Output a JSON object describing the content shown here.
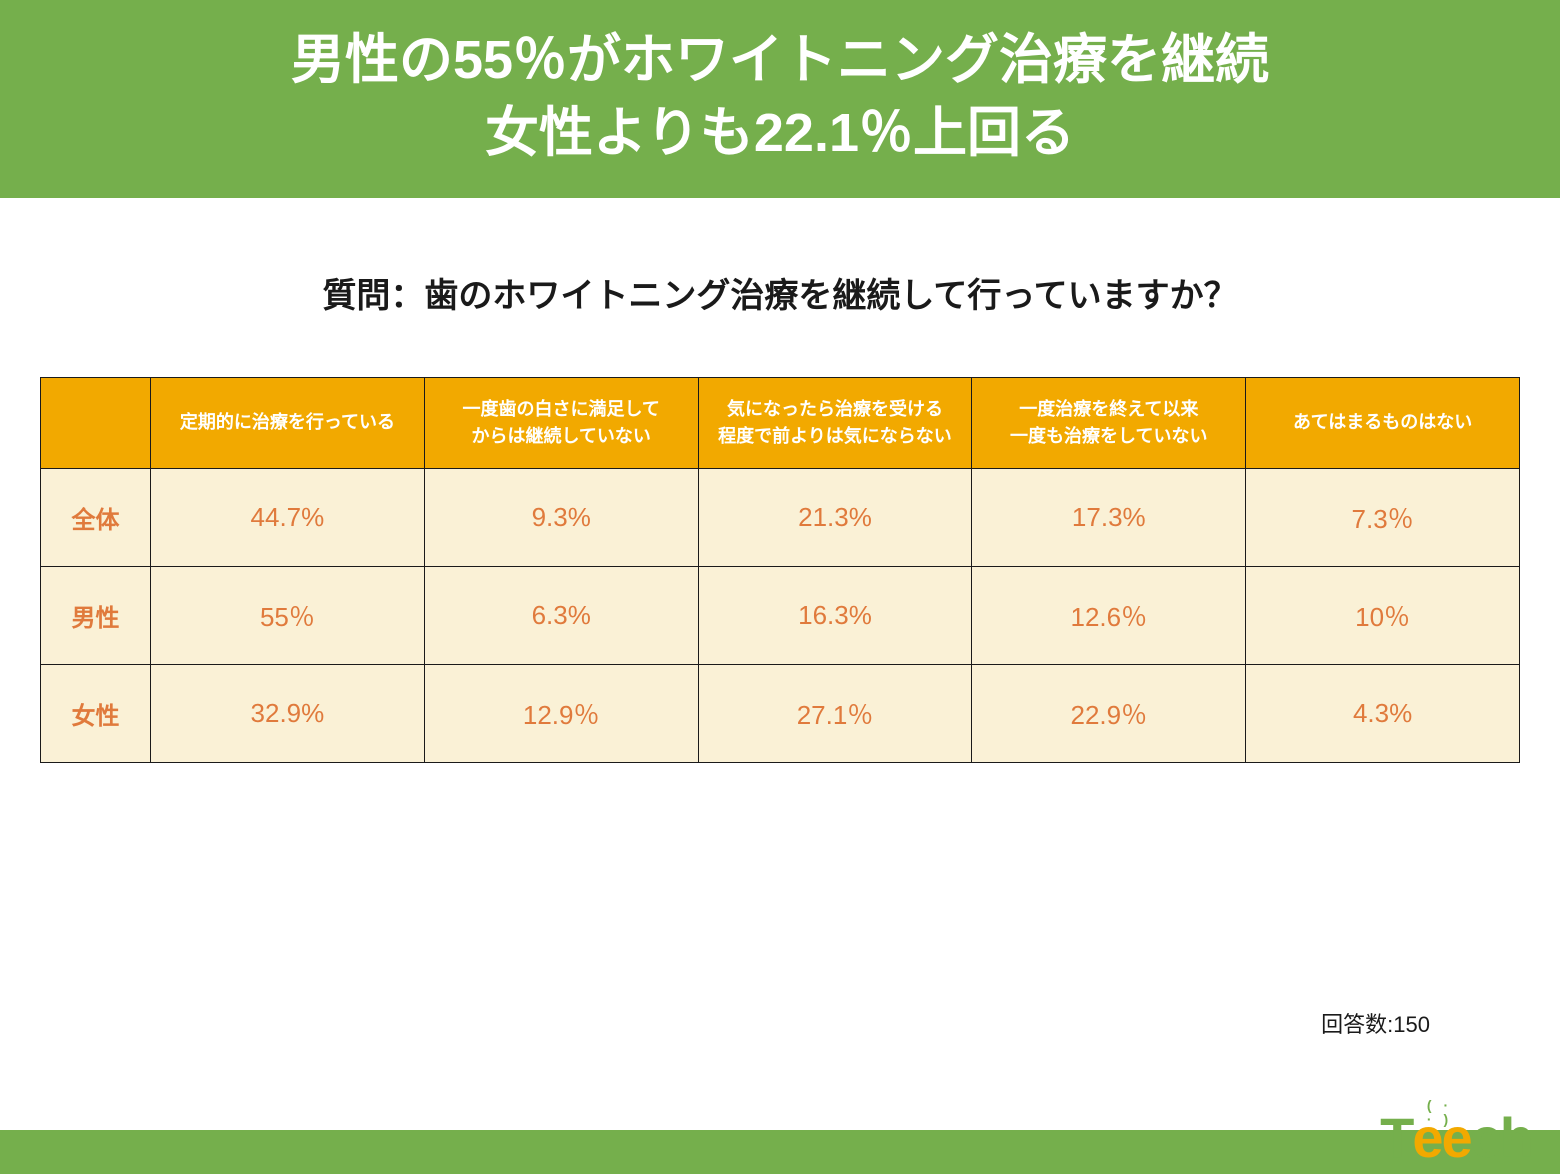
{
  "header": {
    "line1": "男性の55％がホワイトニング治療を継続",
    "line2": "女性よりも22.1％上回る",
    "bg_color": "#75af4c",
    "text_color": "#ffffff",
    "font_size": 54
  },
  "question": "質問：歯のホワイトニング治療を継続して行っていますか？",
  "table": {
    "type": "table",
    "header_bg": "#f2a900",
    "header_text_color": "#ffffff",
    "cell_bg": "#faf1d6",
    "cell_text_color": "#e07a3c",
    "border_color": "#1a1a1a",
    "columns": [
      "",
      "定期的に治療を行っている",
      "一度歯の白さに満足して\nからは継続していない",
      "気になったら治療を受ける\n程度で前よりは気にならない",
      "一度治療を終えて以来\n一度も治療をしていない",
      "あてはまるものはない"
    ],
    "rows": [
      {
        "label": "全体",
        "cells": [
          "44.7%",
          "9.3%",
          "21.3%",
          "17.3%",
          "7.3％"
        ]
      },
      {
        "label": "男性",
        "cells": [
          "55％",
          "6.3%",
          "16.3%",
          "12.6％",
          "10％"
        ]
      },
      {
        "label": "女性",
        "cells": [
          "32.9%",
          "12.9％",
          "27.1％",
          "22.9％",
          "4.3%"
        ]
      }
    ]
  },
  "respondents": "回答数:150",
  "footer": {
    "bar_color": "#75af4c"
  },
  "logo": {
    "text_t": "T",
    "text_ee": "ee",
    "text_ch": "ch",
    "color_green": "#75af4c",
    "color_orange": "#f2a900"
  }
}
